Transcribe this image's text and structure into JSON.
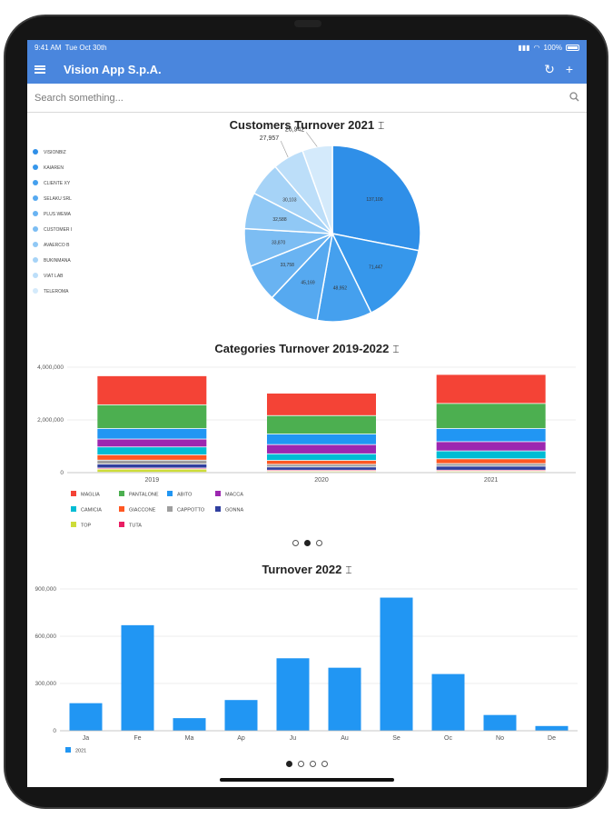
{
  "status_bar": {
    "time": "9:41 AM",
    "date": "Tue Oct 30th",
    "battery": "100%"
  },
  "app": {
    "title": "Vision App S.p.A.",
    "refresh_icon": "refresh-icon",
    "add_icon": "plus-icon",
    "menu_icon": "hamburger-icon"
  },
  "search": {
    "placeholder": "Search something...",
    "value": ""
  },
  "colors": {
    "accent": "#4a86dd"
  },
  "charts": [
    {
      "title": "Customers Turnover 2021",
      "chart_data": {
        "type": "pie",
        "legend_position": "left",
        "slices": [
          {
            "label": "VISIONBIZ",
            "value": 137100,
            "label_text": "137,100",
            "color": "#2f8fe8"
          },
          {
            "label": "KAIAREN",
            "value": 71447,
            "label_text": "71,447",
            "color": "#3697eb"
          },
          {
            "label": "CLIENTE XY",
            "value": 48952,
            "label_text": "48,952",
            "color": "#45a0ee"
          },
          {
            "label": "SELAKU SRL",
            "value": 45169,
            "label_text": "45,169",
            "color": "#56a9f0"
          },
          {
            "label": "PLUS WEMA",
            "value": 33758,
            "label_text": "33,758",
            "color": "#69b3f2"
          },
          {
            "label": "CUSTOMER I",
            "value": 33870,
            "label_text": "33,870",
            "color": "#7cbdf3"
          },
          {
            "label": "AVAERCO B",
            "value": 32588,
            "label_text": "32,588",
            "color": "#90c8f5"
          },
          {
            "label": "BUKINMANA",
            "value": 30103,
            "label_text": "30,103",
            "color": "#a6d3f7"
          },
          {
            "label": "VIAT LAB",
            "value": 27957,
            "label_text": "27,957",
            "color": "#bcdef9"
          },
          {
            "label": "TELEROMA",
            "value": 26942,
            "label_text": "26,942",
            "color": "#d4eafb"
          }
        ]
      }
    },
    {
      "title": "Categories Turnover 2019-2022",
      "chart_data": {
        "type": "bar",
        "stacked": true,
        "categories": [
          "2019",
          "2020",
          "2021"
        ],
        "y_ticks": [
          "0",
          "2,000,000",
          "4,000,000"
        ],
        "ylim": [
          0,
          4000000
        ],
        "series": [
          {
            "name": "TOP",
            "color": "#cddc39",
            "values": [
              120000,
              40000,
              40000
            ]
          },
          {
            "name": "TUTA",
            "color": "#e91e63",
            "values": [
              40000,
              40000,
              40000
            ]
          },
          {
            "name": "GONNA",
            "color": "#303f9f",
            "values": [
              150000,
              120000,
              150000
            ]
          },
          {
            "name": "CAPPOTTO",
            "color": "#9e9e9e",
            "values": [
              150000,
              100000,
              100000
            ]
          },
          {
            "name": "GIACCONE",
            "color": "#ff5722",
            "values": [
              200000,
              150000,
              180000
            ]
          },
          {
            "name": "CAMICIA",
            "color": "#00bcd4",
            "values": [
              300000,
              250000,
              300000
            ]
          },
          {
            "name": "MACCA",
            "color": "#9c27b0",
            "values": [
              300000,
              350000,
              350000
            ]
          },
          {
            "name": "ABITO",
            "color": "#2196f3",
            "values": [
              400000,
              400000,
              500000
            ]
          },
          {
            "name": "PANTALONE",
            "color": "#4caf50",
            "values": [
              900000,
              700000,
              950000
            ]
          },
          {
            "name": "MAGLIA",
            "color": "#f44336",
            "values": [
              1100000,
              850000,
              1100000
            ]
          }
        ],
        "legend": [
          "MAGLIA",
          "PANTALONE",
          "ABITO",
          "MACCA",
          "CAMICIA",
          "GIACCONE",
          "CAPPOTTO",
          "GONNA",
          "TOP",
          "TUTA"
        ]
      },
      "pager": {
        "count": 3,
        "active": 1
      }
    },
    {
      "title": "Turnover 2022",
      "chart_data": {
        "type": "bar",
        "categories": [
          "Ja",
          "Fe",
          "Ma",
          "Ap",
          "Ju",
          "Au",
          "Se",
          "Oc",
          "No",
          "De"
        ],
        "y_ticks": [
          "0",
          "300,000",
          "600,000",
          "900,000"
        ],
        "ylim": [
          0,
          900000
        ],
        "series": [
          {
            "name": "2021",
            "color": "#2196f3",
            "values": [
              175000,
              670000,
              80000,
              195000,
              460000,
              400000,
              845000,
              360000,
              100000,
              30000
            ]
          }
        ]
      },
      "pager": {
        "count": 4,
        "active": 0
      }
    }
  ]
}
